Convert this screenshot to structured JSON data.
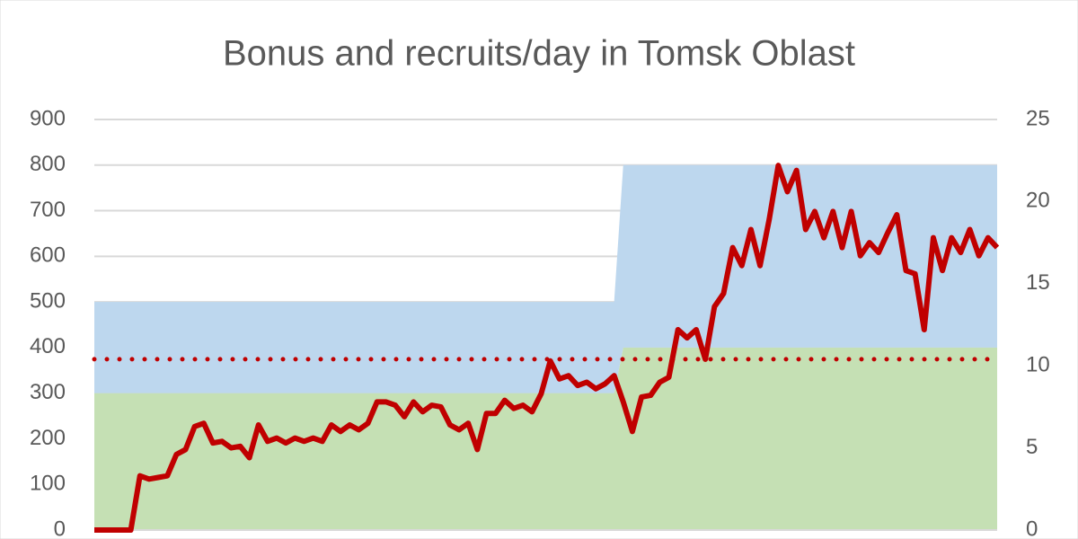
{
  "chart_data": {
    "type": "line",
    "title": "Bonus and recruits/day in Tomsk Oblast",
    "ylim": [
      0,
      900
    ],
    "yticks": [
      0,
      100,
      200,
      300,
      400,
      500,
      600,
      700,
      800,
      900
    ],
    "y2lim": [
      0,
      25
    ],
    "y2ticks": [
      0,
      5,
      10,
      15,
      20,
      25
    ],
    "grid": true,
    "areas": [
      {
        "color": "#c5e0b4",
        "values": [
          300,
          300,
          300,
          300,
          300,
          300,
          300,
          300,
          300,
          300,
          300,
          300,
          300,
          300,
          300,
          300,
          300,
          300,
          300,
          300,
          300,
          300,
          300,
          300,
          300,
          300,
          300,
          300,
          300,
          300,
          300,
          300,
          300,
          300,
          300,
          300,
          300,
          300,
          300,
          300,
          300,
          300,
          300,
          300,
          300,
          300,
          300,
          300,
          300,
          300,
          300,
          300,
          300,
          300,
          300,
          300,
          300,
          300,
          400,
          400,
          400,
          400,
          400,
          400,
          400,
          400,
          400,
          400,
          400,
          400,
          400,
          400,
          400,
          400,
          400,
          400,
          400,
          400,
          400,
          400,
          400,
          400,
          400,
          400,
          400,
          400,
          400,
          400,
          400,
          400,
          400,
          400,
          400,
          400,
          400,
          400,
          400,
          400,
          400,
          400
        ]
      },
      {
        "color": "#bdd7ee",
        "values": [
          200,
          200,
          200,
          200,
          200,
          200,
          200,
          200,
          200,
          200,
          200,
          200,
          200,
          200,
          200,
          200,
          200,
          200,
          200,
          200,
          200,
          200,
          200,
          200,
          200,
          200,
          200,
          200,
          200,
          200,
          200,
          200,
          200,
          200,
          200,
          200,
          200,
          200,
          200,
          200,
          200,
          200,
          200,
          200,
          200,
          200,
          200,
          200,
          200,
          200,
          200,
          200,
          200,
          200,
          200,
          200,
          200,
          200,
          400,
          400,
          400,
          400,
          400,
          400,
          400,
          400,
          400,
          400,
          400,
          400,
          400,
          400,
          400,
          400,
          400,
          400,
          400,
          400,
          400,
          400,
          400,
          400,
          400,
          400,
          400,
          400,
          400,
          400,
          400,
          400,
          400,
          400,
          400,
          400,
          400,
          400,
          400,
          400,
          400,
          400
        ]
      }
    ],
    "series": [
      {
        "color": "#c00000",
        "axis": "y2",
        "values": [
          0,
          0,
          0,
          0,
          0,
          3.3,
          3.1,
          3.2,
          3.3,
          4.6,
          4.9,
          6.3,
          6.5,
          5.3,
          5.4,
          5.0,
          5.1,
          4.4,
          6.4,
          5.4,
          5.6,
          5.3,
          5.6,
          5.4,
          5.6,
          5.4,
          6.4,
          6.0,
          6.4,
          6.1,
          6.5,
          7.8,
          7.8,
          7.6,
          6.9,
          7.8,
          7.2,
          7.6,
          7.5,
          6.4,
          6.1,
          6.5,
          4.9,
          7.1,
          7.1,
          7.9,
          7.4,
          7.6,
          7.2,
          8.3,
          10.3,
          9.2,
          9.4,
          8.8,
          9.0,
          8.6,
          8.9,
          9.4,
          7.8,
          6.0,
          8.1,
          8.2,
          9.0,
          9.3,
          12.2,
          11.7,
          12.2,
          10.4,
          13.6,
          14.4,
          17.2,
          16.1,
          18.3,
          16.1,
          18.9,
          22.2,
          20.6,
          21.9,
          18.3,
          19.4,
          17.8,
          19.4,
          17.2,
          19.4,
          16.7,
          17.5,
          16.9,
          18.1,
          19.2,
          15.8,
          15.6,
          12.2,
          17.8,
          15.8,
          17.8,
          16.9,
          18.3,
          16.7,
          17.8,
          17.2
        ]
      }
    ],
    "reference_line": {
      "value": 10.4,
      "axis": "y2",
      "color": "#c00000"
    }
  }
}
